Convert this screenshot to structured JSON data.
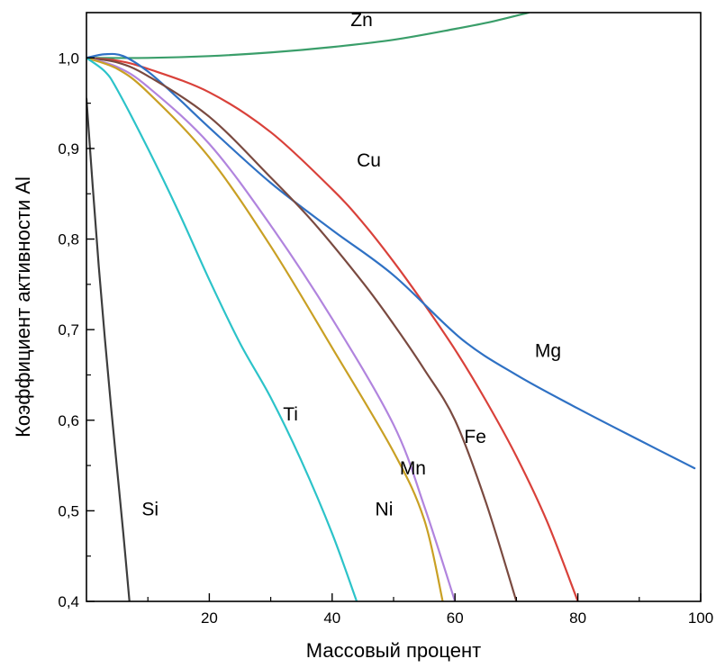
{
  "chart_data": {
    "type": "line",
    "xlabel": "Массовый процент",
    "ylabel": "Коэффициент активности Al",
    "xlim": [
      0,
      100
    ],
    "ylim": [
      0.4,
      1.05
    ],
    "x_ticks": [
      {
        "value": 20,
        "label": "20"
      },
      {
        "value": 40,
        "label": "40"
      },
      {
        "value": 60,
        "label": "60"
      },
      {
        "value": 80,
        "label": "80"
      },
      {
        "value": 100,
        "label": "100"
      }
    ],
    "y_ticks": [
      {
        "value": 0.4,
        "label": "0,4"
      },
      {
        "value": 0.5,
        "label": "0,5"
      },
      {
        "value": 0.6,
        "label": "0,6"
      },
      {
        "value": 0.7,
        "label": "0,7"
      },
      {
        "value": 0.8,
        "label": "0,8"
      },
      {
        "value": 0.9,
        "label": "0,9"
      },
      {
        "value": 1.0,
        "label": "1,0"
      }
    ],
    "grid": false,
    "legend": "none",
    "series": [
      {
        "name": "Zn",
        "color": "#3a9e6a",
        "label_at": [
          43,
          1.035
        ],
        "points": [
          [
            0,
            1.0
          ],
          [
            10,
            1.0
          ],
          [
            20,
            1.002
          ],
          [
            30,
            1.006
          ],
          [
            40,
            1.012
          ],
          [
            50,
            1.02
          ],
          [
            60,
            1.032
          ],
          [
            66,
            1.04
          ],
          [
            72,
            1.05
          ]
        ]
      },
      {
        "name": "Cu",
        "color": "#d9413a",
        "label_at": [
          44,
          0.88
        ],
        "points": [
          [
            0,
            1.0
          ],
          [
            5,
            0.997
          ],
          [
            10,
            0.988
          ],
          [
            20,
            0.962
          ],
          [
            30,
            0.918
          ],
          [
            40,
            0.855
          ],
          [
            45,
            0.818
          ],
          [
            50,
            0.775
          ],
          [
            55,
            0.728
          ],
          [
            60,
            0.678
          ],
          [
            65,
            0.622
          ],
          [
            70,
            0.56
          ],
          [
            75,
            0.488
          ],
          [
            80,
            0.4
          ]
        ]
      },
      {
        "name": "Mg",
        "color": "#2f71c4",
        "label_at": [
          73,
          0.67
        ],
        "points": [
          [
            0,
            1.0
          ],
          [
            3,
            1.004
          ],
          [
            6,
            1.002
          ],
          [
            10,
            0.985
          ],
          [
            15,
            0.955
          ],
          [
            20,
            0.923
          ],
          [
            30,
            0.862
          ],
          [
            40,
            0.81
          ],
          [
            50,
            0.76
          ],
          [
            61,
            0.69
          ],
          [
            70,
            0.65
          ],
          [
            80,
            0.613
          ],
          [
            90,
            0.578
          ],
          [
            99,
            0.547
          ]
        ]
      },
      {
        "name": "Fe",
        "color": "#7a4a40",
        "label_at": [
          61.5,
          0.575
        ],
        "points": [
          [
            0,
            1.0
          ],
          [
            5,
            0.995
          ],
          [
            10,
            0.98
          ],
          [
            20,
            0.935
          ],
          [
            30,
            0.868
          ],
          [
            37,
            0.818
          ],
          [
            45,
            0.752
          ],
          [
            50,
            0.706
          ],
          [
            55,
            0.656
          ],
          [
            60,
            0.6
          ],
          [
            65,
            0.51
          ],
          [
            70,
            0.4
          ]
        ]
      },
      {
        "name": "Mn",
        "color": "#b184de",
        "label_at": [
          51,
          0.54
        ],
        "points": [
          [
            0,
            1.0
          ],
          [
            5,
            0.99
          ],
          [
            10,
            0.968
          ],
          [
            20,
            0.905
          ],
          [
            30,
            0.815
          ],
          [
            40,
            0.712
          ],
          [
            50,
            0.595
          ],
          [
            55,
            0.505
          ],
          [
            60,
            0.4
          ]
        ]
      },
      {
        "name": "Ni",
        "color": "#c9a024",
        "label_at": [
          47,
          0.495
        ],
        "points": [
          [
            0,
            1.0
          ],
          [
            5,
            0.988
          ],
          [
            10,
            0.962
          ],
          [
            20,
            0.89
          ],
          [
            30,
            0.792
          ],
          [
            40,
            0.68
          ],
          [
            50,
            0.565
          ],
          [
            55,
            0.49
          ],
          [
            58,
            0.4
          ]
        ]
      },
      {
        "name": "Ti",
        "color": "#2cc3c9",
        "label_at": [
          32,
          0.6
        ],
        "points": [
          [
            0,
            1.0
          ],
          [
            3,
            0.985
          ],
          [
            5,
            0.965
          ],
          [
            10,
            0.9
          ],
          [
            15,
            0.83
          ],
          [
            20,
            0.755
          ],
          [
            25,
            0.685
          ],
          [
            30,
            0.625
          ],
          [
            35,
            0.555
          ],
          [
            40,
            0.475
          ],
          [
            44,
            0.4
          ]
        ]
      },
      {
        "name": "Si",
        "color": "#3d3d3d",
        "label_at": [
          9,
          0.495
        ],
        "points": [
          [
            0,
            0.955
          ],
          [
            1,
            0.86
          ],
          [
            2,
            0.77
          ],
          [
            3,
            0.69
          ],
          [
            4,
            0.615
          ],
          [
            5,
            0.545
          ],
          [
            6,
            0.475
          ],
          [
            7,
            0.4
          ]
        ]
      }
    ]
  }
}
